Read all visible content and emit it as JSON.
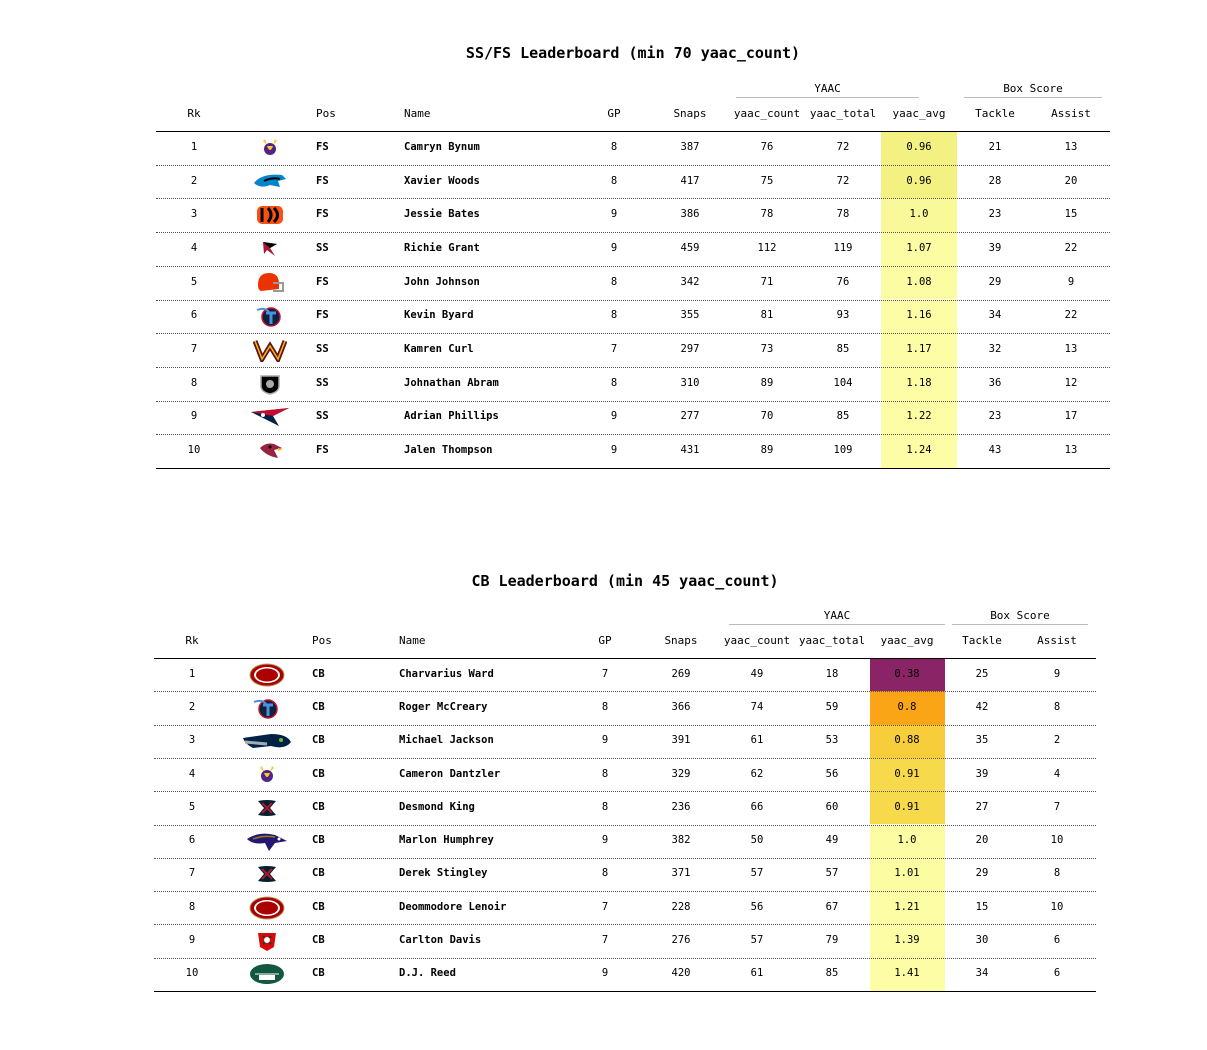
{
  "boards": [
    {
      "title": "SS/FS Leaderboard (min 70 yaac_count)",
      "groups": [
        {
          "label": "YAAC"
        },
        {
          "label": "Box Score"
        }
      ],
      "columns": [
        "Rk",
        "",
        "Pos",
        "Name",
        "GP",
        "Snaps",
        "yaac_count",
        "yaac_total",
        "yaac_avg",
        "Tackle",
        "Assist"
      ],
      "rows": [
        {
          "rk": "1",
          "team": "vikings",
          "pos": "FS",
          "name": "Camryn Bynum",
          "gp": "8",
          "snaps": "387",
          "yaac_count": "76",
          "yaac_total": "72",
          "yaac_avg": "0.96",
          "tackle": "21",
          "assist": "13",
          "avg_color": "#f3f181"
        },
        {
          "rk": "2",
          "team": "panthers",
          "pos": "FS",
          "name": "Xavier Woods",
          "gp": "8",
          "snaps": "417",
          "yaac_count": "75",
          "yaac_total": "72",
          "yaac_avg": "0.96",
          "tackle": "28",
          "assist": "20",
          "avg_color": "#f3f181"
        },
        {
          "rk": "3",
          "team": "bengals",
          "pos": "FS",
          "name": "Jessie Bates",
          "gp": "9",
          "snaps": "386",
          "yaac_count": "78",
          "yaac_total": "78",
          "yaac_avg": "1.0",
          "tackle": "23",
          "assist": "15",
          "avg_color": "#f9f99a"
        },
        {
          "rk": "4",
          "team": "falcons",
          "pos": "SS",
          "name": "Richie Grant",
          "gp": "9",
          "snaps": "459",
          "yaac_count": "112",
          "yaac_total": "119",
          "yaac_avg": "1.07",
          "tackle": "39",
          "assist": "22",
          "avg_color": "#fcfca3"
        },
        {
          "rk": "5",
          "team": "browns",
          "pos": "FS",
          "name": "John Johnson",
          "gp": "8",
          "snaps": "342",
          "yaac_count": "71",
          "yaac_total": "76",
          "yaac_avg": "1.08",
          "tackle": "29",
          "assist": "9",
          "avg_color": "#fcfca3"
        },
        {
          "rk": "6",
          "team": "titans",
          "pos": "FS",
          "name": "Kevin Byard",
          "gp": "8",
          "snaps": "355",
          "yaac_count": "81",
          "yaac_total": "93",
          "yaac_avg": "1.16",
          "tackle": "34",
          "assist": "22",
          "avg_color": "#fdfda5"
        },
        {
          "rk": "7",
          "team": "commanders",
          "pos": "SS",
          "name": "Kamren Curl",
          "gp": "7",
          "snaps": "297",
          "yaac_count": "73",
          "yaac_total": "85",
          "yaac_avg": "1.17",
          "tackle": "32",
          "assist": "13",
          "avg_color": "#fdfda5"
        },
        {
          "rk": "8",
          "team": "raiders",
          "pos": "SS",
          "name": "Johnathan Abram",
          "gp": "8",
          "snaps": "310",
          "yaac_count": "89",
          "yaac_total": "104",
          "yaac_avg": "1.18",
          "tackle": "36",
          "assist": "12",
          "avg_color": "#fdfda5"
        },
        {
          "rk": "9",
          "team": "patriots",
          "pos": "SS",
          "name": "Adrian Phillips",
          "gp": "9",
          "snaps": "277",
          "yaac_count": "70",
          "yaac_total": "85",
          "yaac_avg": "1.22",
          "tackle": "23",
          "assist": "17",
          "avg_color": "#fdfda5"
        },
        {
          "rk": "10",
          "team": "cardinals",
          "pos": "FS",
          "name": "Jalen Thompson",
          "gp": "9",
          "snaps": "431",
          "yaac_count": "89",
          "yaac_total": "109",
          "yaac_avg": "1.24",
          "tackle": "43",
          "assist": "13",
          "avg_color": "#fdfda5"
        }
      ]
    },
    {
      "title": "CB Leaderboard (min 45 yaac_count)",
      "groups": [
        {
          "label": "YAAC"
        },
        {
          "label": "Box Score"
        }
      ],
      "columns": [
        "Rk",
        "",
        "Pos",
        "Name",
        "GP",
        "Snaps",
        "yaac_count",
        "yaac_total",
        "yaac_avg",
        "Tackle",
        "Assist"
      ],
      "rows": [
        {
          "rk": "1",
          "team": "49ers",
          "pos": "CB",
          "name": "Charvarius Ward",
          "gp": "7",
          "snaps": "269",
          "yaac_count": "49",
          "yaac_total": "18",
          "yaac_avg": "0.38",
          "tackle": "25",
          "assist": "9",
          "avg_color": "#8b2466"
        },
        {
          "rk": "2",
          "team": "titans",
          "pos": "CB",
          "name": "Roger McCreary",
          "gp": "8",
          "snaps": "366",
          "yaac_count": "74",
          "yaac_total": "59",
          "yaac_avg": "0.8",
          "tackle": "42",
          "assist": "8",
          "avg_color": "#f9a516"
        },
        {
          "rk": "3",
          "team": "seahawks",
          "pos": "CB",
          "name": "Michael Jackson",
          "gp": "9",
          "snaps": "391",
          "yaac_count": "61",
          "yaac_total": "53",
          "yaac_avg": "0.88",
          "tackle": "35",
          "assist": "2",
          "avg_color": "#f7cd3b"
        },
        {
          "rk": "4",
          "team": "vikings",
          "pos": "CB",
          "name": "Cameron Dantzler",
          "gp": "8",
          "snaps": "329",
          "yaac_count": "62",
          "yaac_total": "56",
          "yaac_avg": "0.91",
          "tackle": "39",
          "assist": "4",
          "avg_color": "#f7d94c"
        },
        {
          "rk": "5",
          "team": "texans",
          "pos": "CB",
          "name": "Desmond King",
          "gp": "8",
          "snaps": "236",
          "yaac_count": "66",
          "yaac_total": "60",
          "yaac_avg": "0.91",
          "tackle": "27",
          "assist": "7",
          "avg_color": "#f7d94c"
        },
        {
          "rk": "6",
          "team": "ravens",
          "pos": "CB",
          "name": "Marlon Humphrey",
          "gp": "9",
          "snaps": "382",
          "yaac_count": "50",
          "yaac_total": "49",
          "yaac_avg": "1.0",
          "tackle": "20",
          "assist": "10",
          "avg_color": "#fcfca3"
        },
        {
          "rk": "7",
          "team": "texans",
          "pos": "CB",
          "name": "Derek Stingley",
          "gp": "8",
          "snaps": "371",
          "yaac_count": "57",
          "yaac_total": "57",
          "yaac_avg": "1.01",
          "tackle": "29",
          "assist": "8",
          "avg_color": "#fcfca3"
        },
        {
          "rk": "8",
          "team": "49ers",
          "pos": "CB",
          "name": "Deommodore Lenoir",
          "gp": "7",
          "snaps": "228",
          "yaac_count": "56",
          "yaac_total": "67",
          "yaac_avg": "1.21",
          "tackle": "15",
          "assist": "10",
          "avg_color": "#fdfda5"
        },
        {
          "rk": "9",
          "team": "buccaneers",
          "pos": "CB",
          "name": "Carlton Davis",
          "gp": "7",
          "snaps": "276",
          "yaac_count": "57",
          "yaac_total": "79",
          "yaac_avg": "1.39",
          "tackle": "30",
          "assist": "6",
          "avg_color": "#fdfda5"
        },
        {
          "rk": "10",
          "team": "jets",
          "pos": "CB",
          "name": "D.J. Reed",
          "gp": "9",
          "snaps": "420",
          "yaac_count": "61",
          "yaac_total": "85",
          "yaac_avg": "1.41",
          "tackle": "34",
          "assist": "6",
          "avg_color": "#fdfda5"
        }
      ]
    }
  ],
  "chart_data": [
    {
      "type": "table",
      "title": "SS/FS Leaderboard (min 70 yaac_count)",
      "column_groups": [
        {
          "label": "YAAC",
          "columns": [
            "yaac_count",
            "yaac_total",
            "yaac_avg"
          ]
        },
        {
          "label": "Box Score",
          "columns": [
            "Tackle",
            "Assist"
          ]
        }
      ],
      "columns": [
        "Rk",
        "Pos",
        "Name",
        "GP",
        "Snaps",
        "yaac_count",
        "yaac_total",
        "yaac_avg",
        "Tackle",
        "Assist"
      ],
      "rows": [
        [
          1,
          "FS",
          "Camryn Bynum",
          8,
          387,
          76,
          72,
          0.96,
          21,
          13
        ],
        [
          2,
          "FS",
          "Xavier Woods",
          8,
          417,
          75,
          72,
          0.96,
          28,
          20
        ],
        [
          3,
          "FS",
          "Jessie Bates",
          9,
          386,
          78,
          78,
          1.0,
          23,
          15
        ],
        [
          4,
          "SS",
          "Richie Grant",
          9,
          459,
          112,
          119,
          1.07,
          39,
          22
        ],
        [
          5,
          "FS",
          "John Johnson",
          8,
          342,
          71,
          76,
          1.08,
          29,
          9
        ],
        [
          6,
          "FS",
          "Kevin Byard",
          8,
          355,
          81,
          93,
          1.16,
          34,
          22
        ],
        [
          7,
          "SS",
          "Kamren Curl",
          7,
          297,
          73,
          85,
          1.17,
          32,
          13
        ],
        [
          8,
          "SS",
          "Johnathan Abram",
          8,
          310,
          89,
          104,
          1.18,
          36,
          12
        ],
        [
          9,
          "SS",
          "Adrian Phillips",
          9,
          277,
          70,
          85,
          1.22,
          23,
          17
        ],
        [
          10,
          "FS",
          "Jalen Thompson",
          9,
          431,
          89,
          109,
          1.24,
          43,
          13
        ]
      ]
    },
    {
      "type": "table",
      "title": "CB Leaderboard (min 45 yaac_count)",
      "column_groups": [
        {
          "label": "YAAC",
          "columns": [
            "yaac_count",
            "yaac_total",
            "yaac_avg"
          ]
        },
        {
          "label": "Box Score",
          "columns": [
            "Tackle",
            "Assist"
          ]
        }
      ],
      "columns": [
        "Rk",
        "Pos",
        "Name",
        "GP",
        "Snaps",
        "yaac_count",
        "yaac_total",
        "yaac_avg",
        "Tackle",
        "Assist"
      ],
      "rows": [
        [
          1,
          "CB",
          "Charvarius Ward",
          7,
          269,
          49,
          18,
          0.38,
          25,
          9
        ],
        [
          2,
          "CB",
          "Roger McCreary",
          8,
          366,
          74,
          59,
          0.8,
          42,
          8
        ],
        [
          3,
          "CB",
          "Michael Jackson",
          9,
          391,
          61,
          53,
          0.88,
          35,
          2
        ],
        [
          4,
          "CB",
          "Cameron Dantzler",
          8,
          329,
          62,
          56,
          0.91,
          39,
          4
        ],
        [
          5,
          "CB",
          "Desmond King",
          8,
          236,
          66,
          60,
          0.91,
          27,
          7
        ],
        [
          6,
          "CB",
          "Marlon Humphrey",
          9,
          382,
          50,
          49,
          1.0,
          20,
          10
        ],
        [
          7,
          "CB",
          "Derek Stingley",
          8,
          371,
          57,
          57,
          1.01,
          29,
          8
        ],
        [
          8,
          "CB",
          "Deommodore Lenoir",
          7,
          228,
          56,
          67,
          1.21,
          15,
          10
        ],
        [
          9,
          "CB",
          "Carlton Davis",
          7,
          276,
          57,
          79,
          1.39,
          30,
          6
        ],
        [
          10,
          "CB",
          "D.J. Reed",
          9,
          420,
          61,
          85,
          1.41,
          34,
          6
        ]
      ]
    }
  ]
}
